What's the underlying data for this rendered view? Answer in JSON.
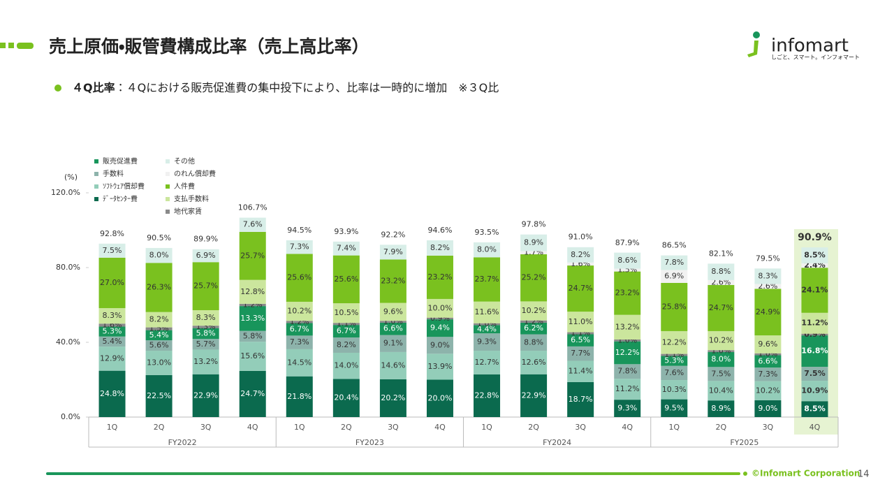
{
  "header": {
    "title": "売上原価・販管費構成比率（売上高比率）",
    "subtitle_bold": "４Q比率",
    "subtitle": "：４Qにおける販売促進費の集中投下により、比率は一時的に増加　※３Q比"
  },
  "logo": {
    "name": "infomart",
    "tagline": "しごと、スマート。インフォマート"
  },
  "footer": {
    "copyright": "©Infomart Corporation",
    "page": "14"
  },
  "chart_data": {
    "type": "stacked-bar",
    "y_label": "(%)",
    "categories": [
      "1Q",
      "2Q",
      "3Q",
      "4Q",
      "1Q",
      "2Q",
      "3Q",
      "4Q",
      "1Q",
      "2Q",
      "3Q",
      "4Q",
      "1Q",
      "2Q",
      "3Q",
      "4Q"
    ],
    "groups": [
      "FY2022",
      "FY2023",
      "FY2024",
      "FY2025"
    ],
    "ylim": [
      0,
      120
    ],
    "yticks": [
      {
        "value": 0,
        "label": "0.0%"
      },
      {
        "value": 40,
        "label": "40.0%"
      },
      {
        "value": 80,
        "label": "80.0%"
      },
      {
        "value": 120,
        "label": "120.0%"
      }
    ],
    "series": [
      {
        "name": "販売促進費",
        "color": "#18955b",
        "values": [
          5.3,
          5.4,
          5.8,
          13.3,
          6.7,
          6.7,
          6.6,
          9.4,
          4.4,
          6.2,
          6.5,
          12.2,
          5.3,
          8.0,
          6.6,
          16.8
        ],
        "value_labels": [
          "5.3%",
          "5.4%",
          "5.8%",
          "13.3%",
          "6.7%",
          "6.7%",
          "6.6%",
          "9.4%",
          "4.4%",
          "6.2%",
          "6.5%",
          "12.2%",
          "5.3%",
          "8.0%",
          "6.6%",
          "16.8%"
        ]
      },
      {
        "name": "手数料",
        "color": "#8db3ab",
        "values": [
          5.4,
          5.6,
          5.7,
          5.8,
          7.3,
          8.2,
          9.1,
          9.0,
          9.3,
          8.8,
          7.7,
          7.8,
          7.6,
          7.5,
          7.3,
          7.5
        ],
        "value_labels": [
          "5.4%",
          "5.6%",
          "5.7%",
          "5.8%",
          "7.3%",
          "8.2%",
          "9.1%",
          "9.0%",
          "9.3%",
          "8.8%",
          "7.7%",
          "7.8%",
          "7.6%",
          "7.5%",
          "7.3%",
          "7.5%"
        ]
      },
      {
        "name": "ｿﾌﾄｳｪｱ償却費",
        "color": "#93cdb9",
        "values": [
          12.9,
          13.0,
          13.2,
          15.6,
          14.5,
          14.0,
          14.6,
          13.9,
          12.7,
          12.6,
          11.4,
          11.2,
          10.3,
          10.4,
          10.2,
          10.9
        ],
        "value_labels": [
          "12.9%",
          "13.0%",
          "13.2%",
          "15.6%",
          "14.5%",
          "14.0%",
          "14.6%",
          "13.9%",
          "12.7%",
          "12.6%",
          "11.4%",
          "11.2%",
          "10.3%",
          "10.4%",
          "10.2%",
          "10.9%"
        ]
      },
      {
        "name": "ﾃﾞｰﾀｾﾝﾀｰ費",
        "color": "#0b6a4e",
        "values": [
          24.8,
          22.5,
          22.9,
          24.7,
          21.8,
          20.4,
          20.2,
          20.0,
          22.8,
          22.9,
          18.7,
          9.3,
          9.5,
          8.9,
          9.0,
          8.5
        ],
        "value_labels": [
          "24.8%",
          "22.5%",
          "22.9%",
          "24.7%",
          "21.8%",
          "20.4%",
          "20.2%",
          "20.0%",
          "22.8%",
          "22.9%",
          "18.7%",
          "9.3%",
          "9.5%",
          "8.9%",
          "9.0%",
          "8.5%"
        ]
      },
      {
        "name": "その他",
        "color": "#d8eee8",
        "values": [
          7.5,
          8.0,
          6.9,
          7.6,
          7.3,
          7.4,
          7.9,
          8.2,
          8.0,
          8.9,
          8.2,
          8.6,
          7.8,
          8.8,
          8.3,
          8.5
        ],
        "value_labels": [
          "7.5%",
          "8.0%",
          "6.9%",
          "7.6%",
          "7.3%",
          "7.4%",
          "7.9%",
          "8.2%",
          "8.0%",
          "8.9%",
          "8.2%",
          "8.6%",
          "7.8%",
          "8.8%",
          "8.3%",
          "8.5%"
        ]
      },
      {
        "name": "のれん償却費",
        "color": "#f1f1f1",
        "values": [
          null,
          null,
          null,
          null,
          null,
          null,
          null,
          null,
          null,
          1.7,
          1.6,
          1.5,
          6.9,
          2.6,
          2.6,
          2.4
        ],
        "value_labels": [
          null,
          null,
          null,
          null,
          null,
          null,
          null,
          null,
          null,
          "1.7%",
          "1.6%",
          "1.5%",
          "6.9%",
          "2.6%",
          "2.6%",
          "2.4%"
        ]
      },
      {
        "name": "人件費",
        "color": "#7ac11f",
        "values": [
          27.0,
          26.3,
          25.7,
          25.7,
          25.6,
          25.6,
          23.2,
          23.2,
          23.7,
          25.2,
          24.7,
          23.2,
          25.8,
          24.7,
          24.9,
          24.1
        ],
        "value_labels": [
          "27.0%",
          "26.3%",
          "25.7%",
          "25.7%",
          "25.6%",
          "25.6%",
          "23.2%",
          "23.2%",
          "23.7%",
          "25.2%",
          "24.7%",
          "23.2%",
          "25.8%",
          "24.7%",
          "24.9%",
          "24.1%"
        ]
      },
      {
        "name": "支払手数料",
        "color": "#cbe69d",
        "values": [
          8.3,
          8.2,
          8.3,
          12.8,
          10.2,
          10.5,
          9.6,
          10.0,
          11.6,
          10.2,
          11.0,
          13.2,
          12.2,
          10.2,
          9.6,
          11.2
        ],
        "value_labels": [
          "8.3%",
          "8.2%",
          "8.3%",
          "12.8%",
          "10.2%",
          "10.5%",
          "9.6%",
          "10.0%",
          "11.6%",
          "10.2%",
          "11.0%",
          "13.2%",
          "12.2%",
          "10.2%",
          "9.6%",
          "11.2%"
        ]
      },
      {
        "name": "地代家賃",
        "color": "#8a8a8a",
        "values": [
          1.6,
          1.5,
          1.3,
          1.2,
          1.2,
          1.1,
          1.0,
          0.9,
          1.0,
          1.2,
          1.1,
          1.0,
          1.1,
          1.0,
          1.0,
          0.9
        ],
        "value_labels": [
          "1.6%",
          "1.5%",
          "1.3%",
          "1.2%",
          "1.2%",
          "1.1%",
          "1.0%",
          "0.9%",
          "1.0%",
          "1.2%",
          "1.1%",
          "1.0%",
          "1.1%",
          "1.0%",
          "1.0%",
          "0.9%"
        ]
      }
    ],
    "totals": [
      92.8,
      90.5,
      89.9,
      106.7,
      94.5,
      93.9,
      92.2,
      94.6,
      93.5,
      97.8,
      91.0,
      87.9,
      86.5,
      82.1,
      79.5,
      90.9
    ],
    "total_labels": [
      "92.8%",
      "90.5%",
      "89.9%",
      "106.7%",
      "94.5%",
      "93.9%",
      "92.2%",
      "94.6%",
      "93.5%",
      "97.8%",
      "91.0%",
      "87.9%",
      "86.5%",
      "82.1%",
      "79.5%",
      "90.9%"
    ]
  }
}
